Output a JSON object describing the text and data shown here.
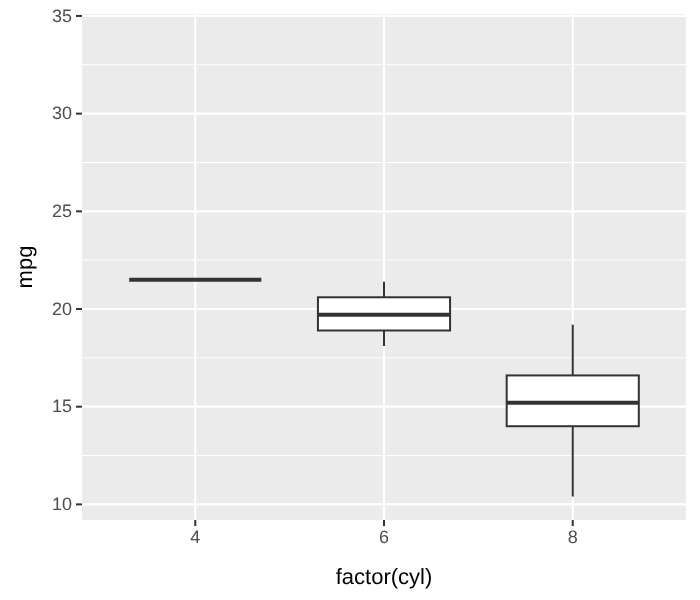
{
  "chart_data": {
    "type": "box",
    "xlabel": "factor(cyl)",
    "ylabel": "mpg",
    "categories": [
      "4",
      "6",
      "8"
    ],
    "boxes": [
      {
        "low": 21.5,
        "q1": 21.5,
        "median": 21.5,
        "q3": 21.5,
        "high": 21.5
      },
      {
        "low": 18.1,
        "q1": 18.9,
        "median": 19.7,
        "q3": 20.6,
        "high": 21.4
      },
      {
        "low": 10.4,
        "q1": 14.0,
        "median": 15.2,
        "q3": 16.6,
        "high": 19.2
      }
    ],
    "ylim": [
      9.2,
      35.1
    ],
    "yticks": [
      10,
      15,
      20,
      25,
      30,
      35
    ],
    "grid": true
  }
}
